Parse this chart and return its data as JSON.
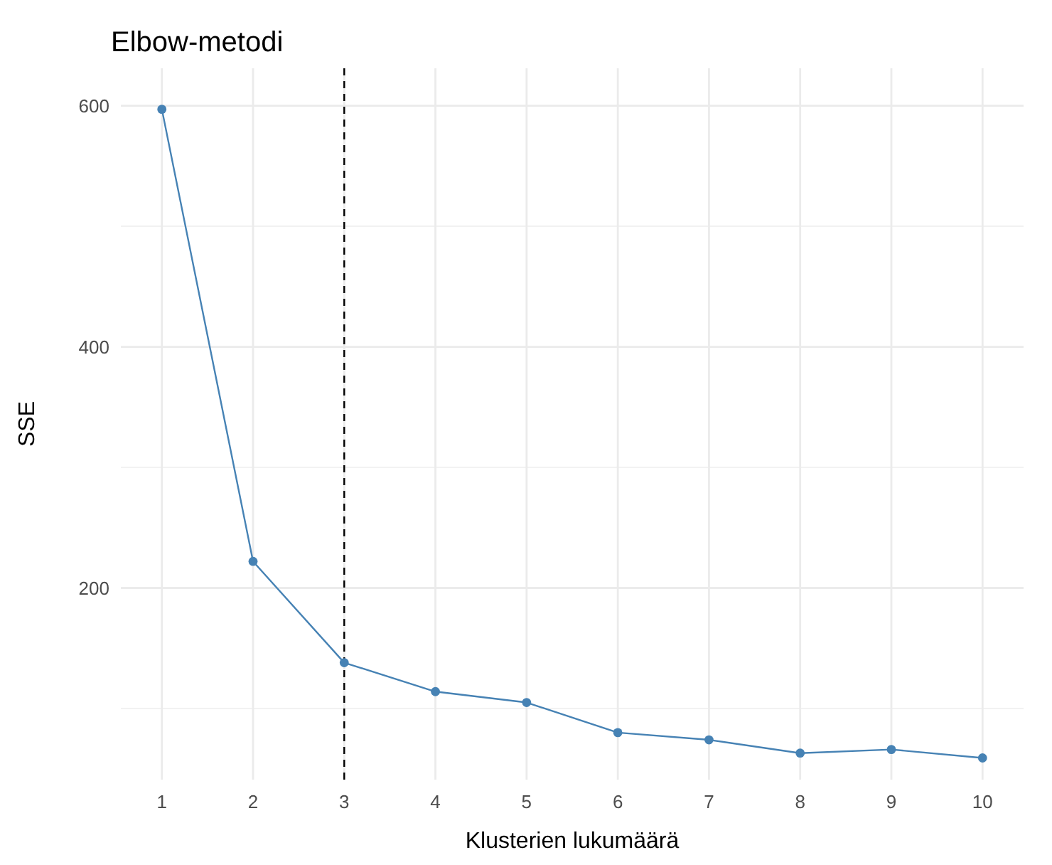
{
  "chart_data": {
    "type": "line",
    "title": "Elbow-metodi",
    "xlabel": "Klusterien lukumäärä",
    "ylabel": "SSE",
    "x": [
      1,
      2,
      3,
      4,
      5,
      6,
      7,
      8,
      9,
      10
    ],
    "series": [
      {
        "color": "#4682b4",
        "values": [
          597,
          222,
          138,
          114,
          105,
          80,
          74,
          63,
          66,
          59
        ]
      }
    ],
    "xlim": [
      0.55,
      10.45
    ],
    "xticks": [
      1,
      2,
      3,
      4,
      5,
      6,
      7,
      8,
      9,
      10
    ],
    "ylim": [
      41,
      631
    ],
    "yticks": [
      {
        "value": 100,
        "label": null
      },
      200,
      {
        "value": 300,
        "label": null
      },
      400,
      {
        "value": 500,
        "label": null
      },
      600
    ],
    "grid": true,
    "marker": "circle",
    "line_style": "solid",
    "ref_lines": [
      {
        "axis": "x",
        "value": 3,
        "line_style": "dashed",
        "color": "#000000"
      }
    ]
  }
}
